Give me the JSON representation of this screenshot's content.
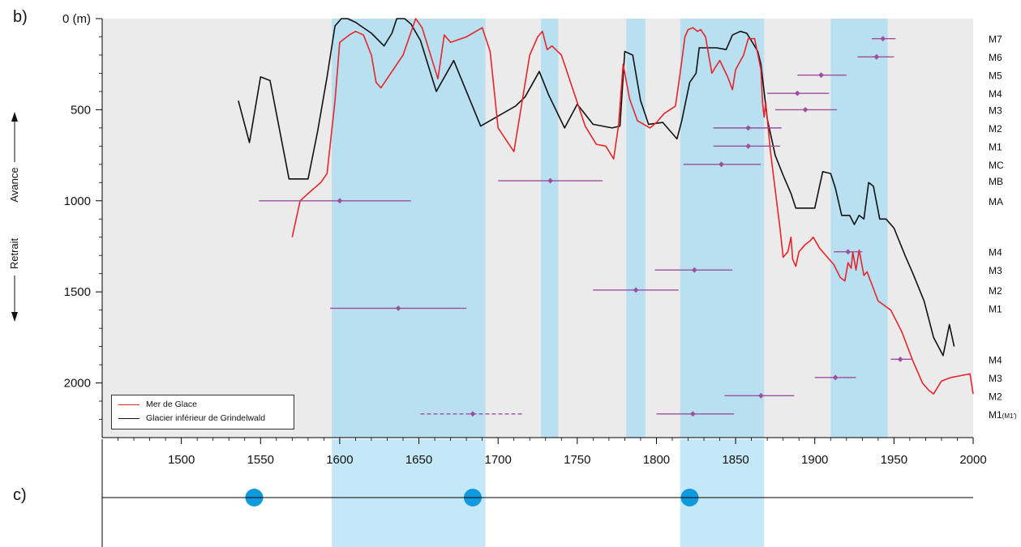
{
  "panel_labels": {
    "b": "b)",
    "c": "c)"
  },
  "colors": {
    "mer_de_glace": "#e8242a",
    "grindelwald": "#111111",
    "shade_b": "#b9e0f1",
    "shade_c": "#c4e8f7",
    "plot_bg": "#ebebeb",
    "points": "#9b4f9c",
    "dots_c": "#1199dd"
  },
  "y_axis": {
    "unit_tick": "0 (m)",
    "label_retrait": "Retrait",
    "label_avance": "Avance"
  },
  "chart_data": [
    {
      "type": "line",
      "xlim": [
        1450,
        2000
      ],
      "ylim": [
        2300,
        0
      ],
      "y_inverted": true,
      "x_ticks": [
        1500,
        1550,
        1600,
        1650,
        1700,
        1750,
        1800,
        1850,
        1900,
        1950,
        2000
      ],
      "y_ticks": [
        0,
        500,
        1000,
        1500,
        2000
      ],
      "y_tick_labels": [
        "0 (m)",
        "500",
        "1000",
        "1500",
        "2000"
      ],
      "shaded_periods": [
        [
          1595,
          1692
        ],
        [
          1727,
          1738
        ],
        [
          1781,
          1793
        ],
        [
          1815,
          1868
        ],
        [
          1910,
          1946
        ]
      ],
      "legend": [
        "Mer de Glace",
        "Glacier inférieur de Grindelwald"
      ],
      "legend_position": "bottom-left",
      "series": [
        {
          "name": "Mer de Glace",
          "color": "#e8242a",
          "points": [
            [
              1570,
              1200
            ],
            [
              1575,
              1000
            ],
            [
              1580,
              960
            ],
            [
              1588,
              900
            ],
            [
              1592,
              850
            ],
            [
              1597,
              450
            ],
            [
              1600,
              130
            ],
            [
              1606,
              90
            ],
            [
              1610,
              70
            ],
            [
              1615,
              90
            ],
            [
              1620,
              200
            ],
            [
              1623,
              350
            ],
            [
              1626,
              380
            ],
            [
              1640,
              200
            ],
            [
              1648,
              0
            ],
            [
              1652,
              50
            ],
            [
              1662,
              330
            ],
            [
              1666,
              90
            ],
            [
              1670,
              130
            ],
            [
              1680,
              100
            ],
            [
              1690,
              50
            ],
            [
              1695,
              180
            ],
            [
              1700,
              600
            ],
            [
              1710,
              730
            ],
            [
              1720,
              200
            ],
            [
              1725,
              100
            ],
            [
              1728,
              70
            ],
            [
              1731,
              170
            ],
            [
              1734,
              150
            ],
            [
              1740,
              200
            ],
            [
              1755,
              590
            ],
            [
              1762,
              690
            ],
            [
              1768,
              700
            ],
            [
              1773,
              770
            ],
            [
              1776,
              590
            ],
            [
              1779,
              250
            ],
            [
              1783,
              440
            ],
            [
              1788,
              560
            ],
            [
              1796,
              600
            ],
            [
              1800,
              570
            ],
            [
              1805,
              520
            ],
            [
              1812,
              480
            ],
            [
              1815,
              300
            ],
            [
              1818,
              100
            ],
            [
              1820,
              60
            ],
            [
              1823,
              50
            ],
            [
              1826,
              70
            ],
            [
              1828,
              60
            ],
            [
              1831,
              100
            ],
            [
              1835,
              300
            ],
            [
              1837,
              270
            ],
            [
              1840,
              230
            ],
            [
              1845,
              320
            ],
            [
              1848,
              390
            ],
            [
              1850,
              280
            ],
            [
              1855,
              200
            ],
            [
              1858,
              110
            ],
            [
              1862,
              110
            ],
            [
              1866,
              280
            ],
            [
              1867,
              460
            ],
            [
              1868,
              540
            ],
            [
              1869,
              460
            ],
            [
              1872,
              730
            ],
            [
              1875,
              940
            ],
            [
              1878,
              1150
            ],
            [
              1880,
              1310
            ],
            [
              1883,
              1280
            ],
            [
              1885,
              1200
            ],
            [
              1886,
              1320
            ],
            [
              1888,
              1360
            ],
            [
              1890,
              1280
            ],
            [
              1894,
              1240
            ],
            [
              1897,
              1220
            ],
            [
              1899,
              1200
            ],
            [
              1903,
              1260
            ],
            [
              1906,
              1290
            ],
            [
              1912,
              1350
            ],
            [
              1916,
              1420
            ],
            [
              1919,
              1440
            ],
            [
              1921,
              1340
            ],
            [
              1923,
              1370
            ],
            [
              1924,
              1280
            ],
            [
              1926,
              1380
            ],
            [
              1928,
              1270
            ],
            [
              1931,
              1410
            ],
            [
              1933,
              1390
            ],
            [
              1940,
              1550
            ],
            [
              1948,
              1600
            ],
            [
              1955,
              1720
            ],
            [
              1962,
              1880
            ],
            [
              1968,
              2000
            ],
            [
              1972,
              2040
            ],
            [
              1975,
              2060
            ],
            [
              1980,
              1990
            ],
            [
              1986,
              1970
            ],
            [
              1992,
              1960
            ],
            [
              1998,
              1950
            ],
            [
              2002,
              2060
            ]
          ]
        },
        {
          "name": "Glacier inférieur de Grindelwald",
          "color": "#111111",
          "points": [
            [
              1536,
              450
            ],
            [
              1543,
              680
            ],
            [
              1550,
              320
            ],
            [
              1556,
              340
            ],
            [
              1564,
              700
            ],
            [
              1568,
              880
            ],
            [
              1580,
              880
            ],
            [
              1586,
              620
            ],
            [
              1592,
              320
            ],
            [
              1597,
              40
            ],
            [
              1601,
              0
            ],
            [
              1605,
              0
            ],
            [
              1610,
              20
            ],
            [
              1620,
              80
            ],
            [
              1628,
              150
            ],
            [
              1633,
              80
            ],
            [
              1636,
              0
            ],
            [
              1641,
              0
            ],
            [
              1645,
              30
            ],
            [
              1651,
              120
            ],
            [
              1661,
              400
            ],
            [
              1672,
              230
            ],
            [
              1689,
              590
            ],
            [
              1711,
              480
            ],
            [
              1717,
              430
            ],
            [
              1726,
              290
            ],
            [
              1732,
              420
            ],
            [
              1742,
              600
            ],
            [
              1750,
              470
            ],
            [
              1760,
              580
            ],
            [
              1772,
              600
            ],
            [
              1777,
              590
            ],
            [
              1780,
              180
            ],
            [
              1785,
              200
            ],
            [
              1790,
              450
            ],
            [
              1795,
              580
            ],
            [
              1804,
              570
            ],
            [
              1809,
              620
            ],
            [
              1813,
              660
            ],
            [
              1816,
              560
            ],
            [
              1821,
              350
            ],
            [
              1825,
              300
            ],
            [
              1827,
              160
            ],
            [
              1832,
              160
            ],
            [
              1838,
              160
            ],
            [
              1844,
              170
            ],
            [
              1848,
              90
            ],
            [
              1853,
              70
            ],
            [
              1857,
              80
            ],
            [
              1862,
              150
            ],
            [
              1864,
              180
            ],
            [
              1866,
              250
            ],
            [
              1870,
              550
            ],
            [
              1875,
              750
            ],
            [
              1880,
              860
            ],
            [
              1885,
              960
            ],
            [
              1888,
              1040
            ],
            [
              1895,
              1040
            ],
            [
              1900,
              1040
            ],
            [
              1905,
              840
            ],
            [
              1910,
              850
            ],
            [
              1913,
              930
            ],
            [
              1917,
              1080
            ],
            [
              1922,
              1080
            ],
            [
              1925,
              1130
            ],
            [
              1928,
              1080
            ],
            [
              1931,
              1100
            ],
            [
              1934,
              900
            ],
            [
              1937,
              920
            ],
            [
              1941,
              1100
            ],
            [
              1945,
              1100
            ],
            [
              1950,
              1150
            ],
            [
              1957,
              1300
            ],
            [
              1962,
              1400
            ],
            [
              1969,
              1550
            ],
            [
              1975,
              1750
            ],
            [
              1981,
              1850
            ],
            [
              1985,
              1680
            ],
            [
              1988,
              1800
            ]
          ]
        }
      ],
      "moraine_points": [
        {
          "x": 1943,
          "xmin": 1936,
          "xmax": 1951,
          "y": 110,
          "label": "M7"
        },
        {
          "x": 1939,
          "xmin": 1927,
          "xmax": 1950,
          "y": 210,
          "label": "M6"
        },
        {
          "x": 1904,
          "xmin": 1889,
          "xmax": 1920,
          "y": 310,
          "label": "M5"
        },
        {
          "x": 1889,
          "xmin": 1870,
          "xmax": 1909,
          "y": 410,
          "label": "M4"
        },
        {
          "x": 1894,
          "xmin": 1875,
          "xmax": 1914,
          "y": 500,
          "label": "M3"
        },
        {
          "x": 1858,
          "xmin": 1836,
          "xmax": 1879,
          "y": 600,
          "label": "M2"
        },
        {
          "x": 1858,
          "xmin": 1836,
          "xmax": 1878,
          "y": 700,
          "label": "M1"
        },
        {
          "x": 1841,
          "xmin": 1817,
          "xmax": 1866,
          "y": 800,
          "label": "MC"
        },
        {
          "x": 1733,
          "xmin": 1700,
          "xmax": 1766,
          "y": 890,
          "label": "MB"
        },
        {
          "x": 1600,
          "xmin": 1549,
          "xmax": 1645,
          "y": 1000,
          "label": "MA"
        },
        {
          "x": 1921,
          "xmin": 1912,
          "xmax": 1930,
          "y": 1280,
          "label": "M4"
        },
        {
          "x": 1824,
          "xmin": 1799,
          "xmax": 1848,
          "y": 1380,
          "label": "M3"
        },
        {
          "x": 1787,
          "xmin": 1760,
          "xmax": 1814,
          "y": 1490,
          "label": "M2"
        },
        {
          "x": 1637,
          "xmin": 1594,
          "xmax": 1680,
          "y": 1590,
          "label": "M1"
        },
        {
          "x": 1954,
          "xmin": 1948,
          "xmax": 1961,
          "y": 1870,
          "label": "M4"
        },
        {
          "x": 1913,
          "xmin": 1900,
          "xmax": 1926,
          "y": 1970,
          "label": "M3"
        },
        {
          "x": 1866,
          "xmin": 1843,
          "xmax": 1887,
          "y": 2070,
          "label": "M2"
        },
        {
          "x": 1823,
          "xmin": 1800,
          "xmax": 1849,
          "y": 2170,
          "label": "M1",
          "label_sub": "(M1')"
        },
        {
          "x": 1684,
          "xmin": 1651,
          "xmax": 1716,
          "y": 2170,
          "dashed": true
        }
      ]
    },
    {
      "type": "scatter",
      "panel": "c",
      "shaded_periods": [
        [
          1595,
          1692
        ],
        [
          1815,
          1868
        ]
      ],
      "x": [
        1546,
        1684,
        1821
      ]
    }
  ]
}
